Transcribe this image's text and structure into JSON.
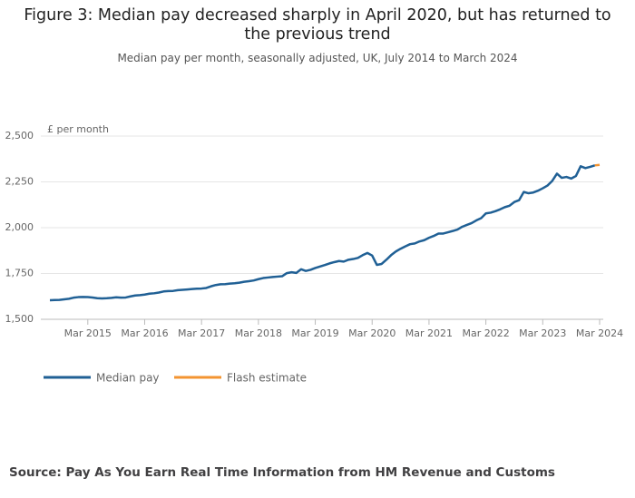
{
  "chart_data": {
    "type": "line",
    "title": "Figure 3: Median pay decreased sharply in April 2020, but has returned to the previous trend",
    "subtitle": "Median pay per month, seasonally adjusted, UK, July 2014 to March 2024",
    "y_label": "£ per month",
    "source": "Source: Pay As You Earn Real Time Information from HM Revenue and Customs",
    "x": [
      "Jul 2014",
      "Aug 2014",
      "Sep 2014",
      "Oct 2014",
      "Nov 2014",
      "Dec 2014",
      "Jan 2015",
      "Feb 2015",
      "Mar 2015",
      "Apr 2015",
      "May 2015",
      "Jun 2015",
      "Jul 2015",
      "Aug 2015",
      "Sep 2015",
      "Oct 2015",
      "Nov 2015",
      "Dec 2015",
      "Jan 2016",
      "Feb 2016",
      "Mar 2016",
      "Apr 2016",
      "May 2016",
      "Jun 2016",
      "Jul 2016",
      "Aug 2016",
      "Sep 2016",
      "Oct 2016",
      "Nov 2016",
      "Dec 2016",
      "Jan 2017",
      "Feb 2017",
      "Mar 2017",
      "Apr 2017",
      "May 2017",
      "Jun 2017",
      "Jul 2017",
      "Aug 2017",
      "Sep 2017",
      "Oct 2017",
      "Nov 2017",
      "Dec 2017",
      "Jan 2018",
      "Feb 2018",
      "Mar 2018",
      "Apr 2018",
      "May 2018",
      "Jun 2018",
      "Jul 2018",
      "Aug 2018",
      "Sep 2018",
      "Oct 2018",
      "Nov 2018",
      "Dec 2018",
      "Jan 2019",
      "Feb 2019",
      "Mar 2019",
      "Apr 2019",
      "May 2019",
      "Jun 2019",
      "Jul 2019",
      "Aug 2019",
      "Sep 2019",
      "Oct 2019",
      "Nov 2019",
      "Dec 2019",
      "Jan 2020",
      "Feb 2020",
      "Mar 2020",
      "Apr 2020",
      "May 2020",
      "Jun 2020",
      "Jul 2020",
      "Aug 2020",
      "Sep 2020",
      "Oct 2020",
      "Nov 2020",
      "Dec 2020",
      "Jan 2021",
      "Feb 2021",
      "Mar 2021",
      "Apr 2021",
      "May 2021",
      "Jun 2021",
      "Jul 2021",
      "Aug 2021",
      "Sep 2021",
      "Oct 2021",
      "Nov 2021",
      "Dec 2021",
      "Jan 2022",
      "Feb 2022",
      "Mar 2022",
      "Apr 2022",
      "May 2022",
      "Jun 2022",
      "Jul 2022",
      "Aug 2022",
      "Sep 2022",
      "Oct 2022",
      "Nov 2022",
      "Dec 2022",
      "Jan 2023",
      "Feb 2023",
      "Mar 2023",
      "Apr 2023",
      "May 2023",
      "Jun 2023",
      "Jul 2023",
      "Aug 2023",
      "Sep 2023",
      "Oct 2023",
      "Nov 2023",
      "Dec 2023",
      "Jan 2024",
      "Feb 2024",
      "Mar 2024"
    ],
    "xticks": [
      "Mar 2015",
      "Mar 2016",
      "Mar 2017",
      "Mar 2018",
      "Mar 2019",
      "Mar 2020",
      "Mar 2021",
      "Mar 2022",
      "Mar 2023",
      "Mar 2024"
    ],
    "series": [
      {
        "name": "Median pay",
        "color": "#206095",
        "values": [
          1604,
          1605,
          1606,
          1609,
          1612,
          1618,
          1621,
          1622,
          1621,
          1619,
          1615,
          1614,
          1615,
          1617,
          1620,
          1618,
          1619,
          1625,
          1630,
          1632,
          1635,
          1640,
          1642,
          1646,
          1652,
          1654,
          1655,
          1659,
          1661,
          1663,
          1665,
          1667,
          1668,
          1671,
          1680,
          1687,
          1691,
          1692,
          1695,
          1697,
          1700,
          1705,
          1708,
          1712,
          1719,
          1725,
          1728,
          1731,
          1733,
          1735,
          1752,
          1757,
          1753,
          1773,
          1764,
          1770,
          1780,
          1788,
          1796,
          1805,
          1812,
          1818,
          1815,
          1825,
          1829,
          1835,
          1850,
          1862,
          1848,
          1797,
          1802,
          1825,
          1850,
          1870,
          1885,
          1898,
          1910,
          1914,
          1925,
          1932,
          1945,
          1955,
          1968,
          1968,
          1975,
          1982,
          1990,
          2005,
          2015,
          2025,
          2040,
          2052,
          2078,
          2082,
          2090,
          2100,
          2112,
          2120,
          2140,
          2150,
          2195,
          2188,
          2192,
          2202,
          2215,
          2230,
          2255,
          2295,
          2272,
          2277,
          2268,
          2282,
          2335,
          2325,
          2332,
          2340,
          null
        ]
      },
      {
        "name": "Flash estimate",
        "color": "#f39431",
        "values": [
          null,
          null,
          null,
          null,
          null,
          null,
          null,
          null,
          null,
          null,
          null,
          null,
          null,
          null,
          null,
          null,
          null,
          null,
          null,
          null,
          null,
          null,
          null,
          null,
          null,
          null,
          null,
          null,
          null,
          null,
          null,
          null,
          null,
          null,
          null,
          null,
          null,
          null,
          null,
          null,
          null,
          null,
          null,
          null,
          null,
          null,
          null,
          null,
          null,
          null,
          null,
          null,
          null,
          null,
          null,
          null,
          null,
          null,
          null,
          null,
          null,
          null,
          null,
          null,
          null,
          null,
          null,
          null,
          null,
          null,
          null,
          null,
          null,
          null,
          null,
          null,
          null,
          null,
          null,
          null,
          null,
          null,
          null,
          null,
          null,
          null,
          null,
          null,
          null,
          null,
          null,
          null,
          null,
          null,
          null,
          null,
          null,
          null,
          null,
          null,
          null,
          null,
          null,
          null,
          null,
          null,
          null,
          null,
          null,
          null,
          null,
          null,
          null,
          null,
          null,
          2340,
          2343
        ]
      }
    ],
    "ylim": [
      1500,
      2500
    ],
    "yticks": [
      {
        "value": 1500,
        "label": "1,500"
      },
      {
        "value": 1750,
        "label": "1,750"
      },
      {
        "value": 2000,
        "label": "2,000"
      },
      {
        "value": 2250,
        "label": "2,250"
      },
      {
        "value": 2500,
        "label": "2,500"
      }
    ],
    "grid": true
  }
}
